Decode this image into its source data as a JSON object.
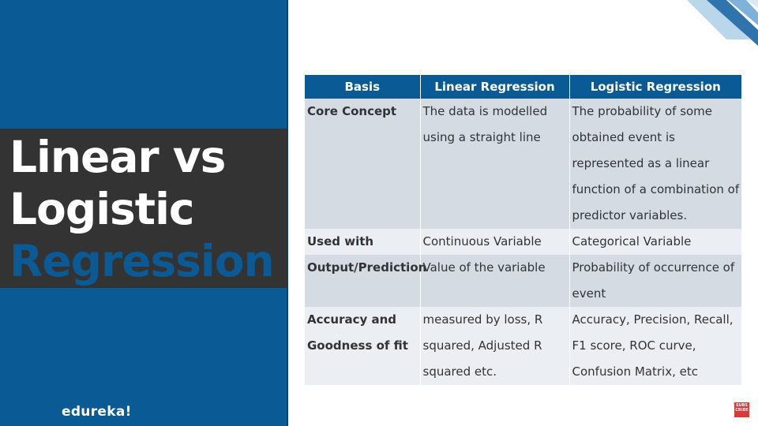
{
  "title": {
    "line1": "Linear vs",
    "line2": "Logistic",
    "line3": "Regression"
  },
  "brand": "edureka!",
  "table": {
    "headers": [
      "Basis",
      "Linear Regression",
      "Logistic Regression"
    ],
    "rows": [
      [
        "Core Concept",
        "The data is modelled using a straight line",
        "The probability of some obtained event is represented as a linear function of a combination of predictor variables."
      ],
      [
        "Used with",
        "Continuous Variable",
        "Categorical Variable"
      ],
      [
        "Output/Prediction",
        "Value of the variable",
        "Probability of occurrence of event"
      ],
      [
        "Accuracy and Goodness of fit",
        "measured by loss, R squared, Adjusted R squared etc.",
        "Accuracy, Precision, Recall, F1 score, ROC curve, Confusion Matrix, etc"
      ]
    ]
  },
  "subscribe": {
    "line1": "SUBS",
    "line2": "CRIBE"
  },
  "colors": {
    "brand_blue": "#0a5a96",
    "dark_band": "#333333",
    "row_dark": "#d5dbe3",
    "row_light": "#ebeef2"
  },
  "icons": [
    "subscribe-badge-icon",
    "corner-stripes-decoration"
  ]
}
